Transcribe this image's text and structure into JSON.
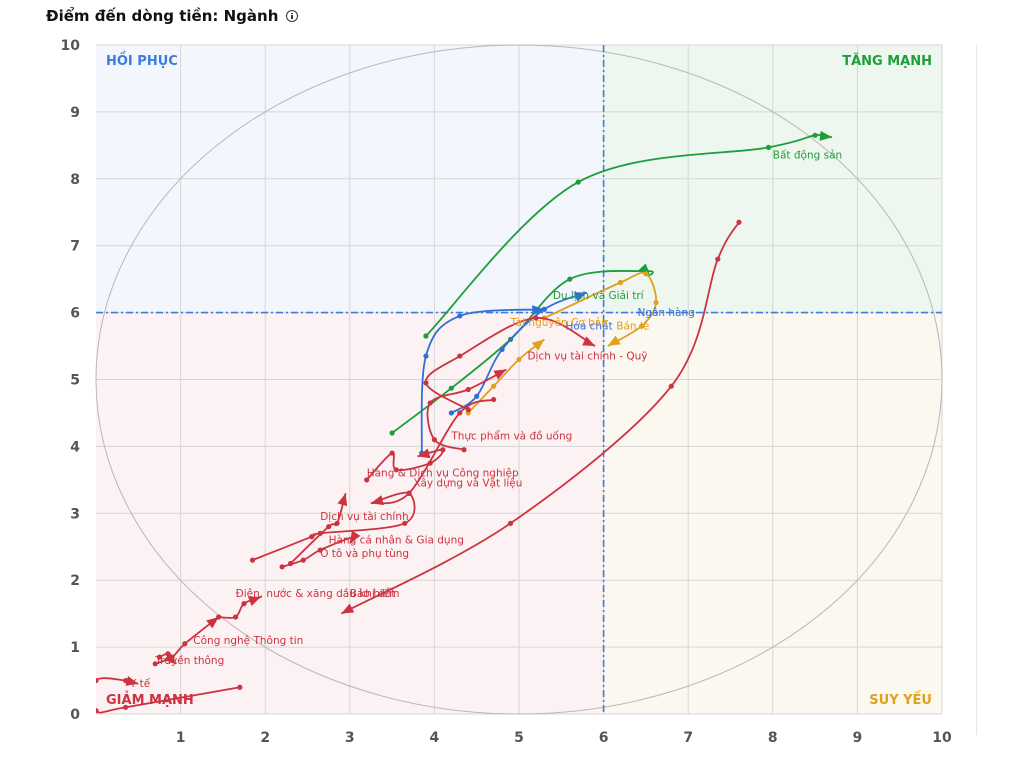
{
  "header": {
    "title": "Điểm đến dòng tiền: Ngành"
  },
  "icons": {
    "info": "info-icon"
  },
  "chart_data": {
    "type": "scatter",
    "variant": "relative-rotation-trails",
    "title": "Điểm đến dòng tiền: Ngành",
    "xlabel": "",
    "ylabel": "",
    "xlim": [
      0,
      10
    ],
    "ylim": [
      0,
      10
    ],
    "x_ticks": [
      1,
      2,
      3,
      4,
      5,
      6,
      7,
      8,
      9,
      10
    ],
    "y_ticks": [
      0,
      1,
      2,
      3,
      4,
      5,
      6,
      7,
      8,
      9,
      10
    ],
    "grid": true,
    "divider": {
      "x": 6,
      "y": 6
    },
    "quadrants": [
      {
        "name": "HỒI PHỤC",
        "position": "top-left",
        "color": "#3b7ddd",
        "fill": "#f3f7fd"
      },
      {
        "name": "TĂNG MẠNH",
        "position": "top-right",
        "color": "#1e9e3a",
        "fill": "#eef7ef"
      },
      {
        "name": "GIẢM MẠNH",
        "position": "bottom-left",
        "color": "#cc3340",
        "fill": "#fcf2f3"
      },
      {
        "name": "SUY YẾU",
        "position": "bottom-right",
        "color": "#e0a020",
        "fill": "#fbf8ef"
      }
    ],
    "series": [
      {
        "name": "Bất động sản",
        "color": "#1e9e3a",
        "label_at": [
          8.0,
          8.3
        ],
        "points": [
          [
            3.9,
            5.65
          ],
          [
            5.7,
            7.95
          ],
          [
            7.95,
            8.47
          ],
          [
            8.5,
            8.65
          ],
          [
            8.7,
            8.62
          ]
        ]
      },
      {
        "name": "Du lịch và Giải trí",
        "color": "#1e9e3a",
        "label_at": [
          5.4,
          6.2
        ],
        "points": [
          [
            3.5,
            4.2
          ],
          [
            4.2,
            4.87
          ],
          [
            4.9,
            5.6
          ],
          [
            5.6,
            6.5
          ],
          [
            6.5,
            6.62
          ],
          [
            6.55,
            6.55
          ]
        ]
      },
      {
        "name": "Ngân hàng",
        "color": "#2f6fd6",
        "label_at": [
          6.4,
          5.95
        ],
        "points": [
          [
            3.85,
            3.9
          ],
          [
            3.9,
            5.35
          ],
          [
            4.3,
            5.95
          ],
          [
            5.3,
            6.05
          ]
        ]
      },
      {
        "name": "Hóa chất",
        "color": "#2f6fd6",
        "label_at": [
          5.55,
          5.75
        ],
        "points": [
          [
            4.2,
            4.5
          ],
          [
            4.5,
            4.75
          ],
          [
            4.8,
            5.45
          ],
          [
            5.3,
            6.05
          ],
          [
            5.8,
            6.3
          ]
        ]
      },
      {
        "name": "Bán lẻ",
        "color": "#e0a020",
        "label_at": [
          6.15,
          5.75
        ],
        "points": [
          [
            5.3,
            5.92
          ],
          [
            6.2,
            6.45
          ],
          [
            6.5,
            6.58
          ],
          [
            6.62,
            6.15
          ],
          [
            6.45,
            5.8
          ],
          [
            6.05,
            5.5
          ]
        ]
      },
      {
        "name": "Tài nguyên Cơ bản",
        "color": "#e0a020",
        "label_at": [
          4.9,
          5.8
        ],
        "points": [
          [
            4.4,
            4.5
          ],
          [
            4.7,
            4.9
          ],
          [
            5.0,
            5.3
          ],
          [
            5.3,
            5.6
          ]
        ]
      },
      {
        "name": "Dịch vụ tài chính - Quỹ",
        "color": "#cc3340",
        "label_at": [
          5.1,
          5.3
        ],
        "points": [
          [
            4.4,
            4.55
          ],
          [
            3.9,
            4.95
          ],
          [
            4.3,
            5.35
          ],
          [
            5.2,
            5.92
          ],
          [
            5.9,
            5.5
          ]
        ]
      },
      {
        "name": "Thực phẩm và đồ uống",
        "color": "#cc3340",
        "label_at": [
          4.2,
          4.1
        ],
        "points": [
          [
            4.35,
            3.95
          ],
          [
            4.0,
            4.1
          ],
          [
            3.95,
            4.65
          ],
          [
            4.4,
            4.85
          ],
          [
            4.85,
            5.15
          ]
        ]
      },
      {
        "name": "Hàng & Dịch vụ Công nghiệp",
        "color": "#cc3340",
        "label_at": [
          3.2,
          3.55
        ],
        "points": [
          [
            3.2,
            3.5
          ],
          [
            3.5,
            3.9
          ],
          [
            3.55,
            3.65
          ],
          [
            3.95,
            3.75
          ],
          [
            4.1,
            3.95
          ],
          [
            3.8,
            3.85
          ]
        ]
      },
      {
        "name": "Xây dựng và Vật liệu",
        "color": "#cc3340",
        "label_at": [
          3.75,
          3.4
        ],
        "points": [
          [
            4.7,
            4.7
          ],
          [
            4.3,
            4.5
          ],
          [
            3.7,
            3.3
          ],
          [
            3.25,
            3.15
          ]
        ]
      },
      {
        "name": "Dịch vụ tài chính",
        "color": "#cc3340",
        "label_at": [
          2.65,
          2.9
        ],
        "points": [
          [
            2.3,
            2.25
          ],
          [
            2.75,
            2.8
          ],
          [
            2.85,
            2.85
          ],
          [
            2.95,
            3.3
          ]
        ]
      },
      {
        "name": "Hàng cá nhân & Gia dụng",
        "color": "#cc3340",
        "label_at": [
          2.75,
          2.55
        ],
        "points": [
          [
            1.85,
            2.3
          ],
          [
            2.55,
            2.65
          ],
          [
            2.65,
            2.7
          ],
          [
            3.65,
            2.85
          ],
          [
            3.7,
            3.3
          ],
          [
            3.25,
            3.15
          ]
        ]
      },
      {
        "name": "Ô tô và phụ tùng",
        "color": "#cc3340",
        "label_at": [
          2.65,
          2.35
        ],
        "points": [
          [
            2.2,
            2.2
          ],
          [
            2.45,
            2.3
          ],
          [
            2.65,
            2.45
          ],
          [
            3.05,
            2.65
          ],
          [
            3.0,
            2.55
          ]
        ]
      },
      {
        "name": "Điện, nước & xăng dầu khí đốt",
        "color": "#cc3340",
        "label_at": [
          1.65,
          1.75
        ],
        "points": [
          [
            1.45,
            1.45
          ],
          [
            1.65,
            1.45
          ],
          [
            1.75,
            1.65
          ],
          [
            1.95,
            1.75
          ]
        ]
      },
      {
        "name": "Bảo hiểm",
        "color": "#cc3340",
        "label_at": [
          3.0,
          1.75
        ],
        "points": [
          [
            7.6,
            7.35
          ],
          [
            7.35,
            6.8
          ],
          [
            6.8,
            4.9
          ],
          [
            4.9,
            2.85
          ],
          [
            2.9,
            1.5
          ]
        ]
      },
      {
        "name": "Công nghệ Thông tin",
        "color": "#cc3340",
        "label_at": [
          1.15,
          1.05
        ],
        "points": [
          [
            0.7,
            0.75
          ],
          [
            0.9,
            0.85
          ],
          [
            1.05,
            1.05
          ],
          [
            1.45,
            1.45
          ]
        ]
      },
      {
        "name": "Truyền thông",
        "color": "#cc3340",
        "label_at": [
          0.7,
          0.75
        ],
        "points": [
          [
            0.75,
            0.85
          ],
          [
            0.85,
            0.9
          ],
          [
            0.9,
            0.8
          ],
          [
            0.95,
            0.75
          ]
        ]
      },
      {
        "name": "Y tế",
        "color": "#cc3340",
        "label_at": [
          0.4,
          0.4
        ],
        "points": [
          [
            1.7,
            0.4
          ],
          [
            0.35,
            0.1
          ],
          [
            0.0,
            0.05
          ],
          [
            0.0,
            0.5
          ],
          [
            0.35,
            0.5
          ],
          [
            0.5,
            0.45
          ]
        ]
      }
    ]
  }
}
